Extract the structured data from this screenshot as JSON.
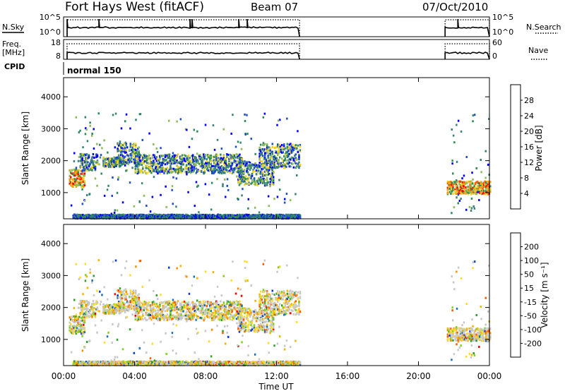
{
  "header": {
    "title": "Fort Hays West (fitACF)",
    "beam": "Beam 07",
    "date": "07/Oct/2010"
  },
  "left_labels": {
    "nsky": "N.Sky",
    "freq": "Freq.",
    "freq_unit": "[MHz]",
    "cpid": "CPID"
  },
  "right_labels": {
    "nsearch": "N.Search",
    "nave": "Nave"
  },
  "cpid_label": "normal 150",
  "time_axis": {
    "label": "Time UT",
    "ticks": [
      "00:00",
      "04:00",
      "08:00",
      "12:00",
      "16:00",
      "20:00",
      "00:00"
    ]
  },
  "colors": {
    "power_scale": [
      "#0000ff",
      "#1e50c0",
      "#3c8278",
      "#2e8b57",
      "#8fbc5a",
      "#f5d01e",
      "#f5a500",
      "#ff6400",
      "#ff0000"
    ],
    "velocity_scale": [
      "#ff0000",
      "#ff5a00",
      "#ff8c00",
      "#f5b400",
      "#ffdc28",
      "#c8c8c8",
      "#7ed321",
      "#32a028",
      "#1e6eb4",
      "#0a3cc8"
    ]
  },
  "chart_data": [
    {
      "type": "line",
      "name": "N.Sky / N.Search",
      "x_unit": "hours UT",
      "xlim": [
        0,
        24
      ],
      "left_ticks": [
        "10^5",
        "10^0"
      ],
      "right_ticks": [
        "10^5",
        "10^0"
      ],
      "series": [
        {
          "name": "N.Sky",
          "style": "solid",
          "segments": [
            [
              0.2,
              13.3
            ],
            [
              21.5,
              24
            ]
          ]
        },
        {
          "name": "N.Search",
          "style": "dotted",
          "segments": [
            [
              0.2,
              13.3
            ],
            [
              21.5,
              24
            ]
          ]
        }
      ]
    },
    {
      "type": "line",
      "name": "Freq / Nave",
      "xlim": [
        0,
        24
      ],
      "left_ticks": [
        "18",
        "8"
      ],
      "right_ticks": [
        "60",
        "0"
      ],
      "series": [
        {
          "name": "Freq.",
          "style": "solid",
          "segments": [
            [
              0.2,
              13.3
            ],
            [
              21.5,
              24
            ]
          ]
        },
        {
          "name": "Nave",
          "style": "dotted",
          "segments": [
            [
              0.2,
              13.3
            ],
            [
              21.5,
              24
            ]
          ]
        }
      ]
    },
    {
      "type": "heatmap",
      "name": "Power",
      "xlabel": "Time UT",
      "ylabel": "Slant Range [km]",
      "xlim": [
        0,
        24
      ],
      "ylim": [
        180,
        4600
      ],
      "yticks": [
        1000,
        2000,
        3000,
        4000
      ],
      "colorbar": {
        "label": "Power [dB]",
        "ticks": [
          "4",
          "8",
          "12",
          "16",
          "20",
          "24",
          "28"
        ],
        "range": [
          0,
          30
        ]
      },
      "echo_bands": [
        {
          "t0": 0.3,
          "t1": 1.2,
          "r_mid": 1450,
          "r_half": 280,
          "level": "high"
        },
        {
          "t0": 0.9,
          "t1": 1.9,
          "r_mid": 1950,
          "r_half": 260,
          "level": "mid"
        },
        {
          "t0": 2.2,
          "t1": 3.3,
          "r_mid": 1950,
          "r_half": 150,
          "level": "mid"
        },
        {
          "t0": 3.0,
          "t1": 4.2,
          "r_mid": 2200,
          "r_half": 350,
          "level": "mid"
        },
        {
          "t0": 4.0,
          "t1": 10.0,
          "r_mid": 1900,
          "r_half": 300,
          "level": "mid"
        },
        {
          "t0": 9.8,
          "t1": 11.8,
          "r_mid": 1600,
          "r_half": 380,
          "level": "mid"
        },
        {
          "t0": 11.0,
          "t1": 13.3,
          "r_mid": 2150,
          "r_half": 380,
          "level": "mid"
        },
        {
          "t0": 0.5,
          "t1": 13.3,
          "r_mid": 250,
          "r_half": 60,
          "level": "low"
        },
        {
          "t0": 21.6,
          "t1": 24.0,
          "r_mid": 1150,
          "r_half": 200,
          "level": "high"
        }
      ]
    },
    {
      "type": "heatmap",
      "name": "Velocity",
      "xlabel": "Time UT",
      "ylabel": "Slant Range [km]",
      "xlim": [
        0,
        24
      ],
      "ylim": [
        180,
        4600
      ],
      "yticks": [
        1000,
        2000,
        3000,
        4000
      ],
      "colorbar": {
        "label": "Velocity [m s⁻¹]",
        "ticks": [
          "-200",
          "-100",
          "-50",
          "-15",
          "15",
          "50",
          "100",
          "200"
        ],
        "range": [
          -250,
          250
        ]
      }
    }
  ]
}
